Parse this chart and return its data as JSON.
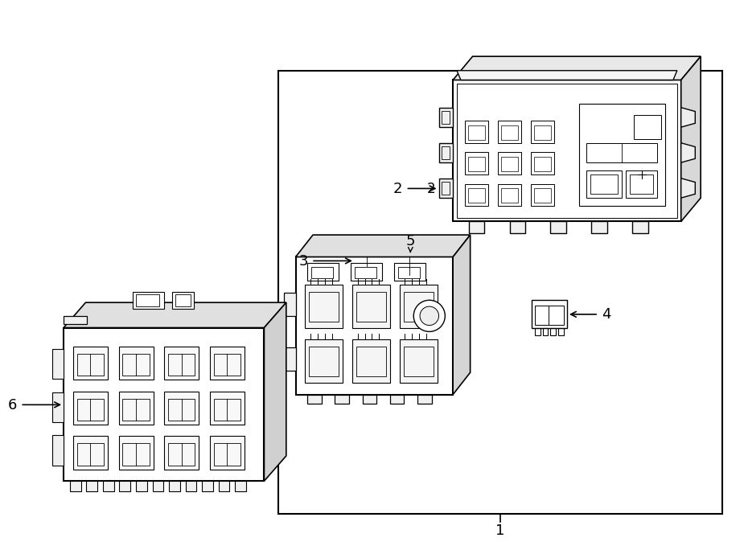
{
  "bg_color": "#ffffff",
  "line_color": "#000000",
  "figure_width": 9.0,
  "figure_height": 6.62,
  "dpi": 100,
  "label_1": "1",
  "label_2": "2",
  "label_3": "3",
  "label_4": "4",
  "label_5": "5",
  "label_6": "6"
}
